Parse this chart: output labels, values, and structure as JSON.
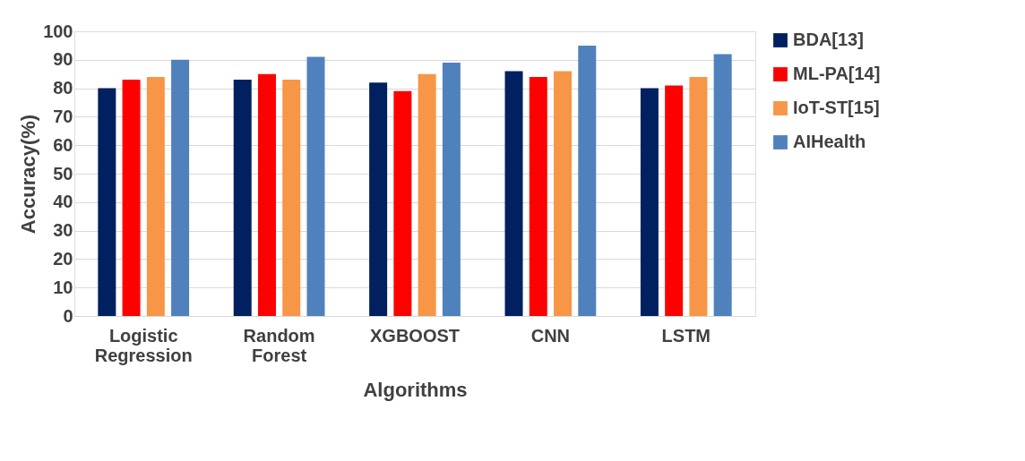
{
  "chart_data": {
    "type": "bar",
    "xlabel": "Algorithms",
    "ylabel": "Accuracy(%)",
    "categories": [
      "Logistic Regression",
      "Random Forest",
      "XGBOOST",
      "CNN",
      "LSTM"
    ],
    "series": [
      {
        "name": "BDA[13]",
        "color": "#002060",
        "values": [
          80,
          83,
          82,
          86,
          80
        ]
      },
      {
        "name": "ML-PA[14]",
        "color": "#ff0000",
        "values": [
          83,
          85,
          79,
          84,
          81
        ]
      },
      {
        "name": "IoT-ST[15]",
        "color": "#f79646",
        "values": [
          84,
          83,
          85,
          86,
          84
        ]
      },
      {
        "name": "AIHealth",
        "color": "#4f81bd",
        "values": [
          90,
          91,
          89,
          95,
          92
        ]
      }
    ],
    "ylim": [
      0,
      100
    ],
    "yticks": [
      0,
      10,
      20,
      30,
      40,
      50,
      60,
      70,
      80,
      90,
      100
    ],
    "grid": "y",
    "legend": "right"
  }
}
